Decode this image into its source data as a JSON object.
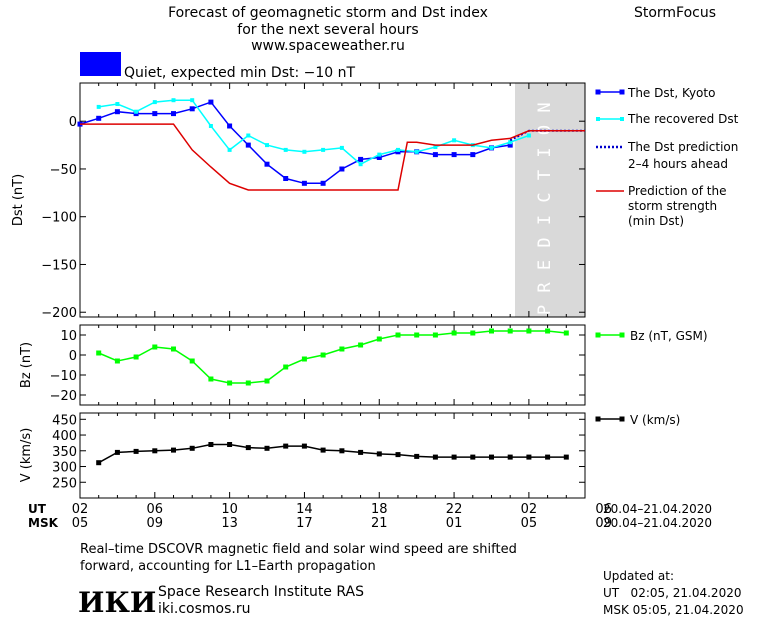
{
  "header": {
    "title_line1": "Forecast of geomagnetic storm and Dst index",
    "title_line2": "for the next several hours",
    "url": "www.spaceweather.ru",
    "brand": "StormFocus",
    "quiet_label": "Quiet, expected min Dst: −10 nT",
    "quiet_color": "#0000ff"
  },
  "legend": {
    "dst_kyoto": "The Dst, Kyoto",
    "dst_recovered": "The recovered Dst",
    "dst_prediction_line1": "The Dst prediction",
    "dst_prediction_line2": "2–4 hours ahead",
    "storm_line1": "Prediction of the",
    "storm_line2": "storm strength",
    "storm_line3": "(min Dst)",
    "bz": "Bz (nT, GSM)",
    "v": "V (km/s)"
  },
  "colors": {
    "kyoto": "#0000ff",
    "recovered": "#00ffff",
    "prediction": "#0000cc",
    "storm": "#dd0000",
    "bz": "#00ff00",
    "v": "#000000",
    "prediction_band": "#d9d9d9",
    "prediction_text": "#ffffff"
  },
  "prediction_word": "PREDICTION",
  "time_axis": {
    "ut_label": "UT",
    "msk_label": "MSK",
    "ut_ticks": [
      "02",
      "06",
      "10",
      "14",
      "18",
      "22",
      "02",
      "06"
    ],
    "msk_ticks": [
      "05",
      "09",
      "13",
      "17",
      "21",
      "01",
      "05",
      "09"
    ],
    "ut_range": "20.04–21.04.2020",
    "msk_range": "20.04–21.04.2020"
  },
  "footer": {
    "note_line1": "Real–time DSCOVR magnetic field and solar wind speed are shifted",
    "note_line2": "forward, accounting for L1–Earth propagation",
    "logo_text": "ИКИ",
    "institute": "Space Research Institute RAS",
    "site": "iki.cosmos.ru",
    "updated_label": "Updated at:",
    "updated_ut": "UT   02:05, 21.04.2020",
    "updated_msk": "MSK 05:05, 21.04.2020"
  },
  "chart_data": [
    {
      "type": "line",
      "ylabel": "Dst (nT)",
      "xlim": [
        0,
        27
      ],
      "ylim": [
        -205,
        40
      ],
      "yticks": [
        0,
        -50,
        -100,
        -150,
        -200
      ],
      "prediction_start": 23,
      "series": [
        {
          "name": "The Dst, Kyoto",
          "x": [
            0,
            1,
            2,
            3,
            4,
            5,
            6,
            7,
            8,
            9,
            10,
            11,
            12,
            13,
            14,
            15,
            16,
            17,
            18,
            19,
            20,
            21,
            22,
            23
          ],
          "y": [
            -3,
            3,
            10,
            8,
            8,
            8,
            13,
            20,
            -5,
            -25,
            -45,
            -60,
            -65,
            -65,
            -50,
            -40,
            -38,
            -32,
            -32,
            -35,
            -35,
            -35,
            -28,
            -25
          ]
        },
        {
          "name": "The recovered Dst",
          "x": [
            1,
            2,
            3,
            4,
            5,
            6,
            7,
            8,
            9,
            10,
            11,
            12,
            13,
            14,
            15,
            16,
            17,
            18,
            19,
            20,
            21,
            22,
            23,
            24
          ],
          "y": [
            15,
            18,
            10,
            20,
            22,
            22,
            -5,
            -30,
            -15,
            -25,
            -30,
            -32,
            -30,
            -28,
            -45,
            -35,
            -30,
            -32,
            -27,
            -20,
            -25,
            -28,
            -22,
            -15
          ]
        },
        {
          "name": "The Dst prediction 2–4 hours ahead",
          "x": [
            23,
            23.5,
            24,
            25,
            26,
            27
          ],
          "y": [
            -20,
            -15,
            -10,
            -10,
            -10,
            -10
          ]
        },
        {
          "name": "Prediction of the storm strength (min Dst)",
          "x": [
            0,
            5,
            6,
            7,
            8,
            9,
            17,
            17.5,
            18,
            19,
            20,
            21,
            22,
            23,
            24,
            27
          ],
          "y": [
            -3,
            -3,
            -30,
            -48,
            -65,
            -72,
            -72,
            -22,
            -22,
            -25,
            -25,
            -25,
            -20,
            -18,
            -10,
            -10
          ]
        }
      ]
    },
    {
      "type": "line",
      "ylabel": "Bz (nT)",
      "xlim": [
        0,
        27
      ],
      "ylim": [
        -25,
        15
      ],
      "yticks": [
        10,
        0,
        -10,
        -20
      ],
      "series": [
        {
          "name": "Bz (nT, GSM)",
          "x": [
            1,
            2,
            3,
            4,
            5,
            6,
            7,
            8,
            9,
            10,
            11,
            12,
            13,
            14,
            15,
            16,
            17,
            18,
            19,
            20,
            21,
            22,
            23,
            24,
            25,
            26
          ],
          "y": [
            1,
            -3,
            -1,
            4,
            3,
            -3,
            -12,
            -14,
            -14,
            -13,
            -6,
            -2,
            0,
            3,
            5,
            8,
            10,
            10,
            10,
            11,
            11,
            12,
            12,
            12,
            12,
            11
          ]
        }
      ]
    },
    {
      "type": "line",
      "ylabel": "V (km/s)",
      "xlim": [
        0,
        27
      ],
      "ylim": [
        200,
        470
      ],
      "yticks": [
        450,
        400,
        350,
        300,
        250
      ],
      "series": [
        {
          "name": "V (km/s)",
          "x": [
            1,
            2,
            3,
            4,
            5,
            6,
            7,
            8,
            9,
            10,
            11,
            12,
            13,
            14,
            15,
            16,
            17,
            18,
            19,
            20,
            21,
            22,
            23,
            24,
            25,
            26
          ],
          "y": [
            312,
            345,
            348,
            350,
            352,
            358,
            370,
            370,
            360,
            358,
            365,
            365,
            352,
            350,
            345,
            340,
            338,
            332,
            330,
            330,
            330,
            330,
            330,
            330,
            330,
            330
          ]
        }
      ]
    }
  ]
}
